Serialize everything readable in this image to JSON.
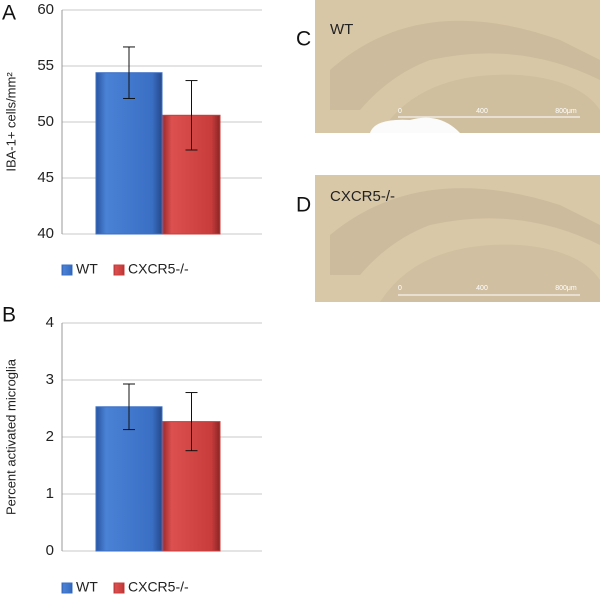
{
  "panels": [
    "A",
    "B",
    "C",
    "D"
  ],
  "chart_data": [
    {
      "type": "bar",
      "y_label": "IBA-1+ cells/mm²",
      "ylim": [
        40,
        60
      ],
      "yticks": [
        40,
        45,
        50,
        55,
        60
      ],
      "grid": true,
      "legend": "bottom",
      "series": [
        {
          "name": "WT",
          "color": "#3a6fc4",
          "values": [
            54.4
          ],
          "errors": [
            2.3
          ]
        },
        {
          "name": "CXCR5-/-",
          "color": "#c83c3c",
          "values": [
            50.6
          ],
          "errors": [
            3.1
          ]
        }
      ]
    },
    {
      "type": "bar",
      "y_label": "Percent activated microglia",
      "ylim": [
        0,
        4
      ],
      "yticks": [
        0,
        1,
        2,
        3,
        4
      ],
      "grid": true,
      "legend": "bottom",
      "series": [
        {
          "name": "WT",
          "color": "#3a6fc4",
          "values": [
            2.53
          ],
          "errors": [
            0.4
          ]
        },
        {
          "name": "CXCR5-/-",
          "color": "#c83c3c",
          "values": [
            2.27
          ],
          "errors": [
            0.51
          ]
        }
      ]
    }
  ],
  "images": [
    {
      "label": "WT",
      "scale": [
        "0",
        "400",
        "800μm"
      ]
    },
    {
      "label": "CXCR5-/-",
      "scale": [
        "0",
        "400",
        "800μm"
      ]
    }
  ]
}
